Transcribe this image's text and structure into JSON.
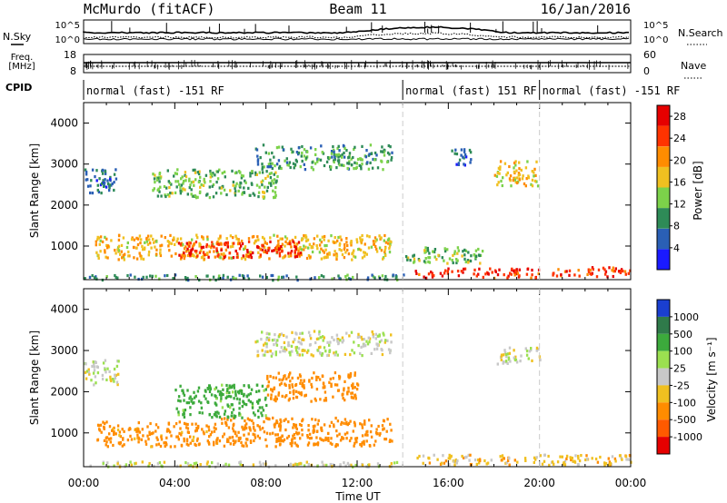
{
  "header": {
    "title": "McMurdo (fitACF)",
    "beam": "Beam 11",
    "date": "16/Jan/2016"
  },
  "strips": {
    "nsky_label": "N.Sky",
    "nsearch_label": "N.Search",
    "noise_ticks_left": [
      "10^5",
      "10^0"
    ],
    "noise_ticks_right": [
      "10^5",
      "10^0"
    ],
    "freq_label_1": "Freq.",
    "freq_label_2": "[MHz]",
    "freq_ticks": [
      "18",
      "8"
    ],
    "nave_label": "Nave",
    "nave_ticks": [
      "60",
      "0"
    ],
    "cpid_label": "CPID",
    "cpid_segments": [
      {
        "label": "normal (fast) -151 RF",
        "start_hour": 0,
        "end_hour": 14
      },
      {
        "label": "normal (fast) 151 RF",
        "start_hour": 14,
        "end_hour": 20
      },
      {
        "label": "normal (fast) -151 RF",
        "start_hour": 20,
        "end_hour": 24
      }
    ]
  },
  "colors": {
    "power_scale": [
      "#1a1aff",
      "#2a5fb5",
      "#2e8b57",
      "#7cd24a",
      "#f0c020",
      "#ff8c00",
      "#ff3300",
      "#e60000"
    ],
    "velocity_scale": [
      "#1a3fd0",
      "#2f7a4a",
      "#3caa3c",
      "#9be050",
      "#c8c8c8",
      "#f0c020",
      "#ff8c00",
      "#ff5a00",
      "#e60000"
    ]
  },
  "chart_data": [
    {
      "type": "heatmap",
      "name": "power",
      "ylabel": "Slant Range [km]",
      "xlabel": "Time UT",
      "ylim": [
        180,
        4500
      ],
      "xlim": [
        0,
        24
      ],
      "yticks": [
        "1000",
        "2000",
        "3000",
        "4000"
      ],
      "xticks": [
        "00:00",
        "04:00",
        "08:00",
        "12:00",
        "16:00",
        "20:00",
        "00:00"
      ],
      "colorbar": {
        "label": "Power [dB]",
        "ticks": [
          "4",
          "8",
          "12",
          "16",
          "20",
          "24",
          "28"
        ],
        "range": [
          0,
          30
        ]
      },
      "echo_regions": [
        {
          "t0": 0.0,
          "t1": 14.0,
          "r0": 200,
          "r1": 330,
          "value": 9
        },
        {
          "t0": 0.5,
          "t1": 13.5,
          "r0": 700,
          "r1": 1300,
          "value": 18
        },
        {
          "t0": 4.0,
          "t1": 9.5,
          "r0": 750,
          "r1": 1150,
          "value": 26
        },
        {
          "t0": 3.0,
          "t1": 8.5,
          "r0": 2200,
          "r1": 2900,
          "value": 12
        },
        {
          "t0": 7.5,
          "t1": 13.5,
          "r0": 2900,
          "r1": 3500,
          "value": 10
        },
        {
          "t0": 0.0,
          "t1": 1.5,
          "r0": 2300,
          "r1": 2900,
          "value": 7
        },
        {
          "t0": 14.5,
          "t1": 20.0,
          "r0": 250,
          "r1": 480,
          "value": 26
        },
        {
          "t0": 20.5,
          "t1": 24.0,
          "r0": 280,
          "r1": 520,
          "value": 25
        },
        {
          "t0": 18.0,
          "t1": 20.0,
          "r0": 2500,
          "r1": 3100,
          "value": 17
        },
        {
          "t0": 14.0,
          "t1": 17.5,
          "r0": 600,
          "r1": 1000,
          "value": 12
        },
        {
          "t0": 16.0,
          "t1": 17.0,
          "r0": 3000,
          "r1": 3400,
          "value": 6
        }
      ]
    },
    {
      "type": "heatmap",
      "name": "velocity",
      "ylabel": "Slant Range [km]",
      "xlabel": "Time UT",
      "ylim": [
        180,
        4500
      ],
      "xlim": [
        0,
        24
      ],
      "yticks": [
        "1000",
        "2000",
        "3000",
        "4000"
      ],
      "xticks": [
        "00:00",
        "04:00",
        "08:00",
        "12:00",
        "16:00",
        "20:00",
        "00:00"
      ],
      "colorbar": {
        "label": "Velocity [m s⁻¹]",
        "ticks": [
          "1000",
          "500",
          "100",
          "25",
          "-25",
          "-100",
          "-500",
          "-1000"
        ],
        "range": [
          -1000,
          1000
        ]
      },
      "echo_regions": [
        {
          "t0": 0.0,
          "t1": 14.0,
          "r0": 200,
          "r1": 330,
          "value": 0
        },
        {
          "t0": 0.5,
          "t1": 6.0,
          "r0": 700,
          "r1": 1300,
          "value": -150
        },
        {
          "t0": 6.0,
          "t1": 13.5,
          "r0": 700,
          "r1": 1400,
          "value": -200
        },
        {
          "t0": 4.0,
          "t1": 8.0,
          "r0": 1400,
          "r1": 2200,
          "value": 150
        },
        {
          "t0": 8.0,
          "t1": 12.0,
          "r0": 1800,
          "r1": 2500,
          "value": -180
        },
        {
          "t0": 7.5,
          "t1": 13.5,
          "r0": 2900,
          "r1": 3500,
          "value": 0
        },
        {
          "t0": 0.0,
          "t1": 1.5,
          "r0": 2200,
          "r1": 2800,
          "value": 0
        },
        {
          "t0": 14.5,
          "t1": 24.0,
          "r0": 250,
          "r1": 500,
          "value": -60
        },
        {
          "t0": 18.0,
          "t1": 20.0,
          "r0": 2700,
          "r1": 3100,
          "value": 0
        }
      ]
    }
  ]
}
